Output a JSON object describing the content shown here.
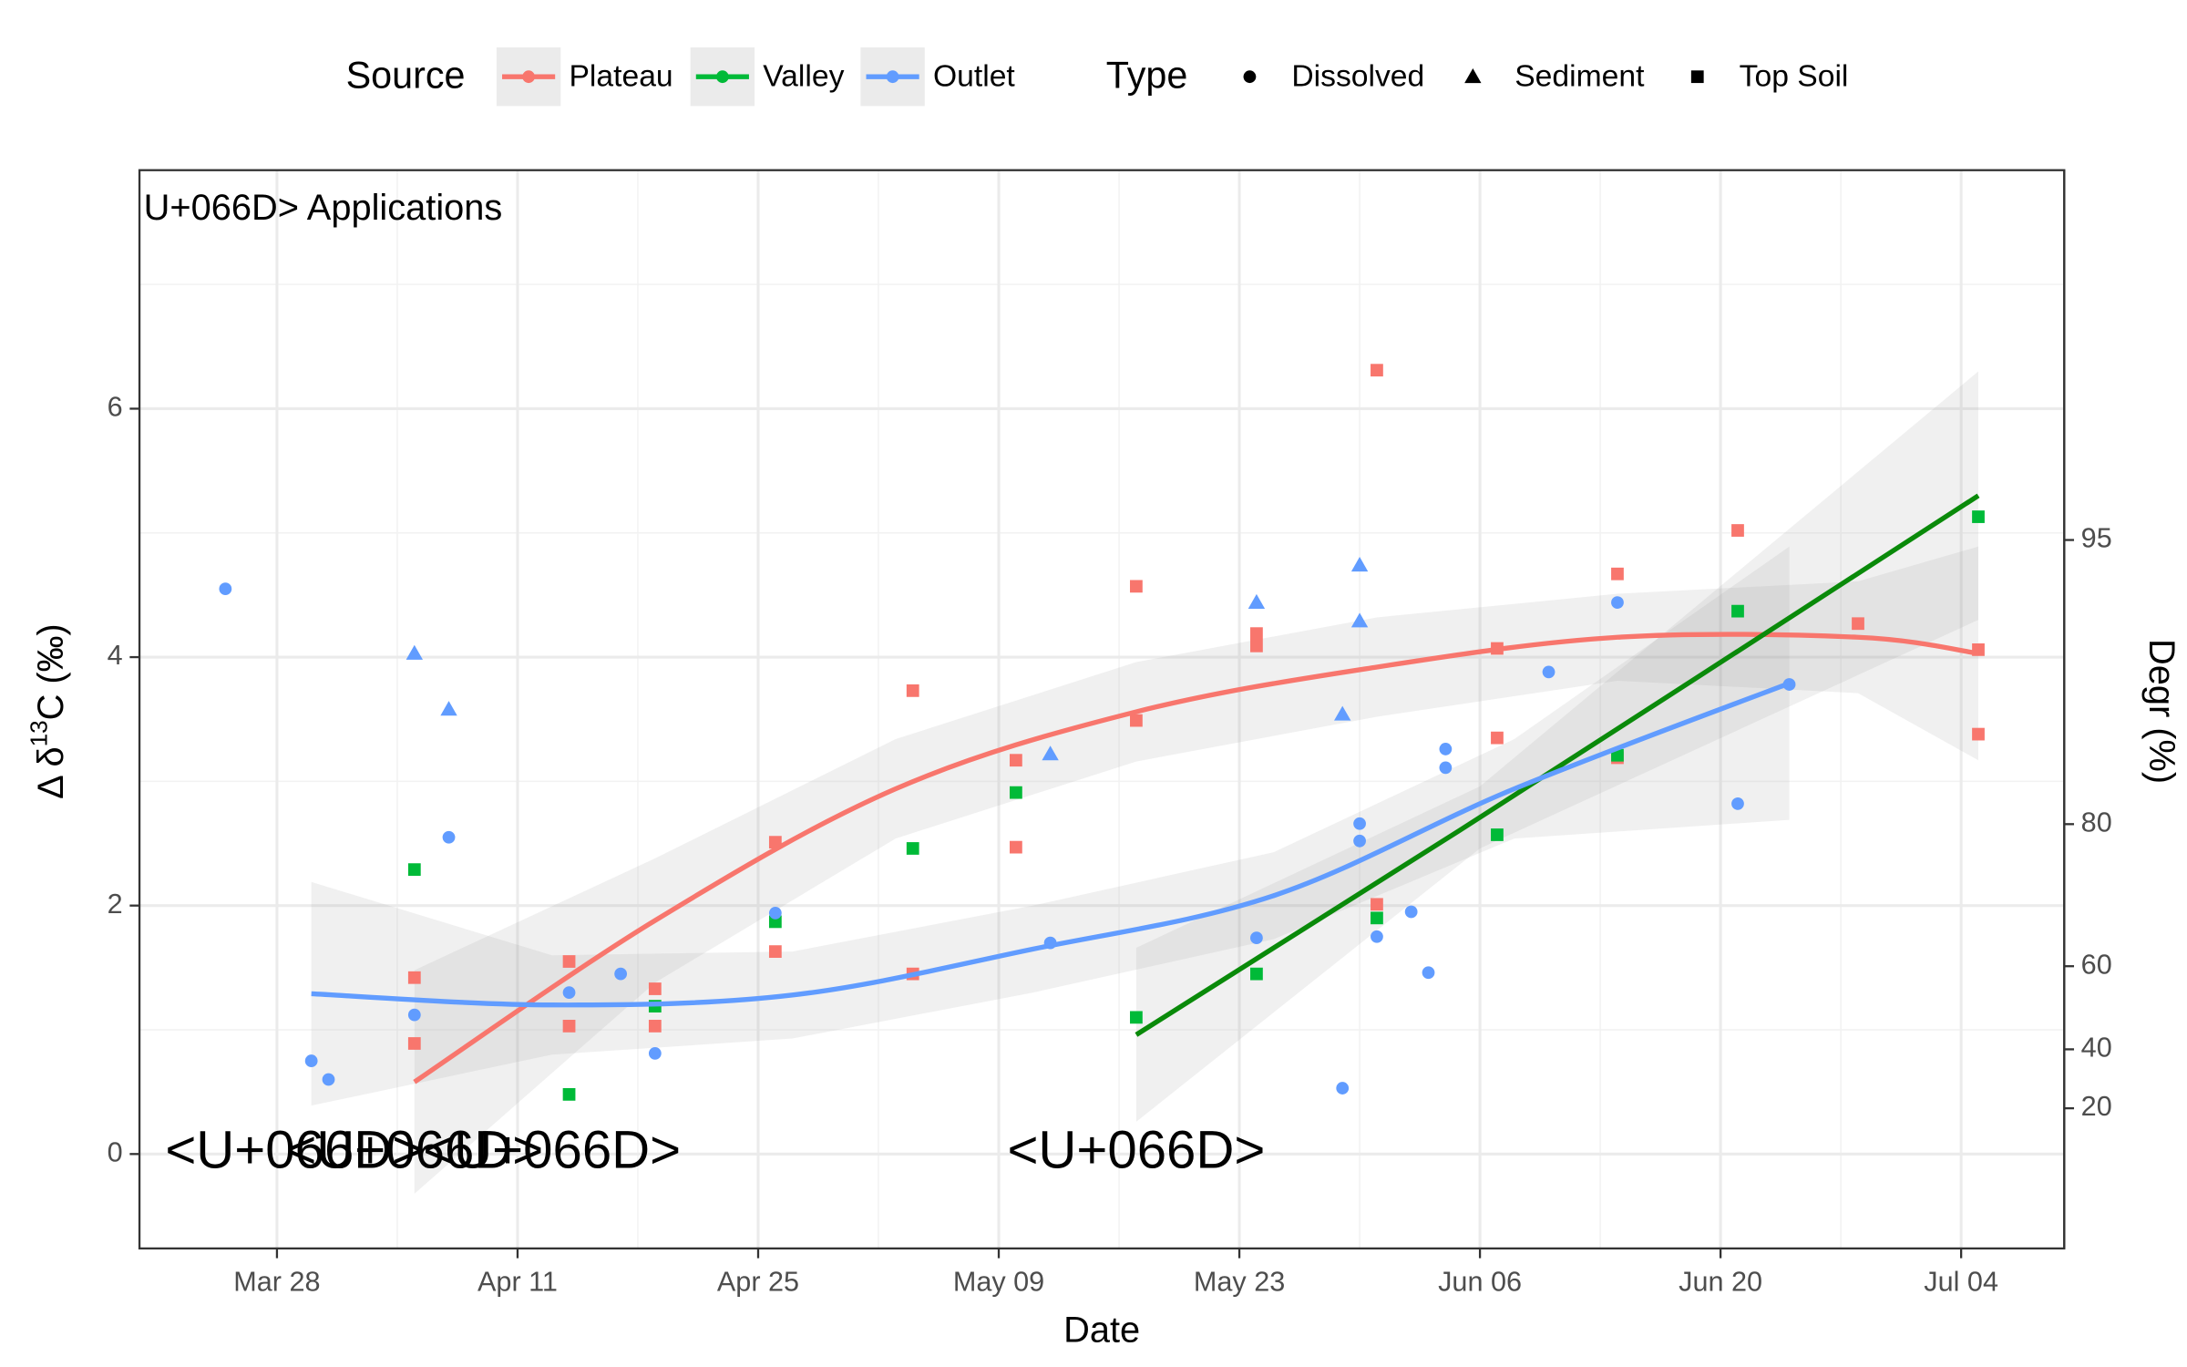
{
  "chart_data": {
    "type": "scatter",
    "x_label": "Date",
    "y_label": {
      "prefix": "Δ δ",
      "sup": "13",
      "suffix": "C (‰)"
    },
    "y2_label": "Degr (%)",
    "legend_source_title": "Source",
    "legend_type_title": "Type",
    "types": [
      {
        "name": "Dissolved",
        "shape": "circle"
      },
      {
        "name": "Sediment",
        "shape": "triangle"
      },
      {
        "name": "Top Soil",
        "shape": "square"
      }
    ],
    "xlim": [
      "Mar 20",
      "Jul 10"
    ],
    "xticks": [
      "Mar 28",
      "Apr 11",
      "Apr 25",
      "May 09",
      "May 23",
      "Jun 06",
      "Jun 20",
      "Jul 04"
    ],
    "ylim": [
      -0.76,
      7.92
    ],
    "yticks": [
      0,
      2,
      4,
      6
    ],
    "y2lim": [
      -58.4,
      99.2
    ],
    "y2ticks": [
      20,
      40,
      60,
      80,
      95
    ],
    "y2_epsilon": 1.65,
    "grid": true,
    "legend": "top",
    "annotations": [
      {
        "text": "U+066D> Applications",
        "x": "Mar 20",
        "y": 7.6,
        "size": "small"
      },
      {
        "text": "<U+066D>",
        "x": "Mar 29",
        "y": 0,
        "size": "large"
      },
      {
        "text": "<U+066D>",
        "x": "Apr 05",
        "y": 0,
        "size": "large"
      },
      {
        "text": "<U+066D>",
        "x": "Apr 13",
        "y": 0,
        "size": "large"
      },
      {
        "text": "<U+066D>",
        "x": "May 17",
        "y": 0,
        "size": "large"
      }
    ],
    "series": [
      {
        "name": "Plateau",
        "color": "#F8766D",
        "fit_color": "#F8766D",
        "x": [
          "Apr 05",
          "Apr 05",
          "Apr 14",
          "Apr 14",
          "Apr 19",
          "Apr 19",
          "Apr 26",
          "Apr 26",
          "May 04",
          "May 04",
          "May 10",
          "May 10",
          "May 17",
          "May 17",
          "May 24",
          "May 24",
          "May 31",
          "May 31",
          "Jun 07",
          "Jun 07",
          "Jun 14",
          "Jun 14",
          "Jun 21",
          "Jun 28",
          "Jul 05",
          "Jul 05"
        ],
        "values": [
          1.42,
          0.89,
          1.55,
          1.03,
          1.33,
          1.03,
          2.51,
          1.63,
          3.73,
          1.45,
          3.17,
          2.47,
          4.57,
          3.49,
          4.19,
          4.09,
          6.31,
          2.01,
          4.07,
          3.35,
          4.67,
          3.19,
          5.02,
          4.27,
          4.06,
          3.38
        ],
        "point_types": [
          "Top Soil",
          "Top Soil",
          "Top Soil",
          "Top Soil",
          "Top Soil",
          "Top Soil",
          "Top Soil",
          "Top Soil",
          "Top Soil",
          "Top Soil",
          "Top Soil",
          "Top Soil",
          "Top Soil",
          "Top Soil",
          "Top Soil",
          "Top Soil",
          "Top Soil",
          "Top Soil",
          "Top Soil",
          "Top Soil",
          "Top Soil",
          "Top Soil",
          "Top Soil",
          "Top Soil",
          "Top Soil",
          "Top Soil"
        ],
        "fit": {
          "x": [
            "Apr 05",
            "Apr 19",
            "May 03",
            "May 17",
            "May 31",
            "Jun 14",
            "Jun 28",
            "Jul 05"
          ],
          "values": [
            0.58,
            1.88,
            2.94,
            3.56,
            3.92,
            4.16,
            4.16,
            4.03
          ],
          "lower": [
            -0.32,
            1.38,
            2.54,
            3.16,
            3.52,
            3.81,
            3.71,
            3.17
          ],
          "upper": [
            1.48,
            2.38,
            3.34,
            3.96,
            4.32,
            4.51,
            4.61,
            4.89
          ]
        }
      },
      {
        "name": "Valley",
        "color": "#00BA38",
        "fit_color": "#0A8A0A",
        "x": [
          "Apr 05",
          "Apr 14",
          "Apr 19",
          "Apr 26",
          "May 04",
          "May 10",
          "May 17",
          "May 24",
          "May 31",
          "Jun 07",
          "Jun 14",
          "Jun 21",
          "Jul 05"
        ],
        "values": [
          2.29,
          0.48,
          1.19,
          1.87,
          2.46,
          2.91,
          1.1,
          1.45,
          1.9,
          2.57,
          3.21,
          4.37,
          5.13
        ],
        "point_types": [
          "Top Soil",
          "Top Soil",
          "Top Soil",
          "Top Soil",
          "Top Soil",
          "Top Soil",
          "Top Soil",
          "Top Soil",
          "Top Soil",
          "Top Soil",
          "Top Soil",
          "Top Soil",
          "Top Soil"
        ],
        "fit": {
          "x": [
            "May 17",
            "Jun 06",
            "Jul 05"
          ],
          "values": [
            0.96,
            2.71,
            5.3
          ],
          "lower": [
            0.26,
            2.46,
            4.3
          ],
          "upper": [
            1.66,
            2.96,
            6.3
          ]
        }
      },
      {
        "name": "Outlet",
        "color": "#619CFF",
        "fit_color": "#619CFF",
        "x": [
          "Mar 25",
          "Mar 30",
          "Mar 31",
          "Apr 05",
          "Apr 07",
          "Apr 07",
          "Apr 05",
          "Apr 14",
          "Apr 17",
          "Apr 19",
          "Apr 26",
          "May 12",
          "May 12",
          "May 24",
          "May 24",
          "May 29",
          "May 29",
          "May 30",
          "May 30",
          "May 30",
          "May 30",
          "May 31",
          "Jun 02",
          "Jun 03",
          "Jun 04",
          "Jun 04",
          "Jun 10",
          "Jun 14",
          "Jun 21",
          "Jun 24"
        ],
        "values": [
          4.55,
          0.75,
          0.6,
          4.03,
          3.58,
          2.55,
          1.12,
          1.3,
          1.45,
          0.81,
          1.94,
          1.7,
          3.22,
          1.74,
          4.44,
          0.53,
          3.54,
          2.66,
          4.29,
          2.52,
          4.74,
          1.75,
          1.95,
          1.46,
          3.26,
          3.11,
          3.88,
          4.44,
          2.82,
          3.78
        ],
        "point_types": [
          "Dissolved",
          "Dissolved",
          "Dissolved",
          "Sediment",
          "Sediment",
          "Dissolved",
          "Dissolved",
          "Dissolved",
          "Dissolved",
          "Dissolved",
          "Dissolved",
          "Dissolved",
          "Sediment",
          "Dissolved",
          "Sediment",
          "Dissolved",
          "Sediment",
          "Dissolved",
          "Sediment",
          "Dissolved",
          "Sediment",
          "Dissolved",
          "Dissolved",
          "Dissolved",
          "Dissolved",
          "Dissolved",
          "Dissolved",
          "Dissolved",
          "Dissolved",
          "Dissolved"
        ],
        "fit": {
          "x": [
            "Mar 30",
            "Apr 13",
            "Apr 27",
            "May 11",
            "May 25",
            "Jun 08",
            "Jun 24"
          ],
          "values": [
            1.29,
            1.2,
            1.28,
            1.65,
            2.08,
            2.94,
            3.79
          ],
          "lower": [
            0.39,
            0.8,
            0.93,
            1.3,
            1.73,
            2.54,
            2.69
          ],
          "upper": [
            2.19,
            1.6,
            1.63,
            2.0,
            2.43,
            3.34,
            4.89
          ]
        }
      }
    ]
  }
}
